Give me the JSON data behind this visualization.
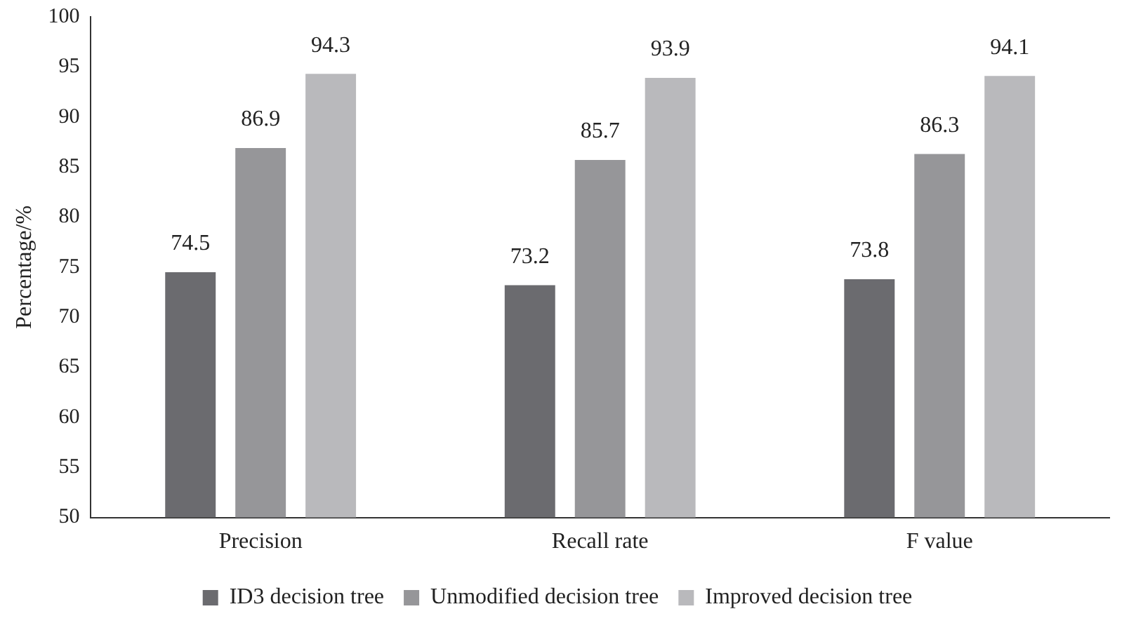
{
  "chart_data": {
    "type": "bar",
    "ylabel": "Percentage/%",
    "categories": [
      "Precision",
      "Recall rate",
      "F value"
    ],
    "series": [
      {
        "name": "ID3 decision tree",
        "color": "#6b6b6f",
        "values": [
          74.5,
          73.2,
          73.8
        ]
      },
      {
        "name": "Unmodified decision tree",
        "color": "#969699",
        "values": [
          86.9,
          85.7,
          86.3
        ]
      },
      {
        "name": "Improved decision tree",
        "color": "#b9b9bc",
        "values": [
          94.3,
          93.9,
          94.1
        ]
      }
    ],
    "ylim": [
      50,
      100
    ],
    "yticks": [
      50,
      55,
      60,
      65,
      70,
      75,
      80,
      85,
      90,
      95,
      100
    ],
    "grid": false,
    "legend": "bottom",
    "data_labels": true
  }
}
